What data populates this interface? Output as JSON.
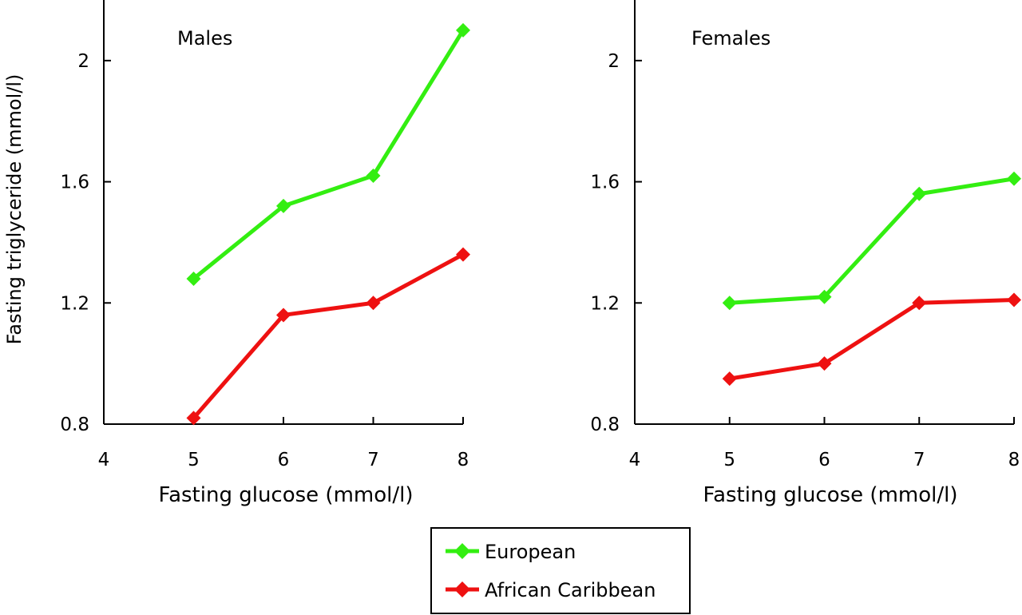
{
  "chart_data": [
    {
      "type": "line",
      "title": "Males",
      "xlabel": "Fasting glucose (mmol/l)",
      "ylabel": "Fasting triglyceride (mmol/l)",
      "xlim": [
        4,
        8
      ],
      "ylim": [
        0.8,
        2.2
      ],
      "xticks": [
        4,
        5,
        6,
        7,
        8
      ],
      "yticks": [
        0.8,
        1.2,
        1.6,
        2
      ],
      "x": [
        5,
        6,
        7,
        8
      ],
      "series": [
        {
          "name": "European",
          "color": "#33ee11",
          "values": [
            1.28,
            1.52,
            1.62,
            2.1
          ]
        },
        {
          "name": "African Caribbean",
          "color": "#ee1111",
          "values": [
            0.82,
            1.16,
            1.2,
            1.36
          ]
        }
      ]
    },
    {
      "type": "line",
      "title": "Females",
      "xlabel": "Fasting glucose (mmol/l)",
      "ylabel": "",
      "xlim": [
        4,
        8
      ],
      "ylim": [
        0.8,
        2.2
      ],
      "xticks": [
        4,
        5,
        6,
        7,
        8
      ],
      "yticks": [
        0.8,
        1.2,
        1.6,
        2
      ],
      "x": [
        5,
        6,
        7,
        8
      ],
      "series": [
        {
          "name": "European",
          "color": "#33ee11",
          "values": [
            1.2,
            1.22,
            1.56,
            1.61
          ]
        },
        {
          "name": "African Caribbean",
          "color": "#ee1111",
          "values": [
            0.95,
            1.0,
            1.2,
            1.21
          ]
        }
      ]
    }
  ],
  "legend": {
    "placement": "bottom-center",
    "items": [
      {
        "label": "European",
        "color": "#33ee11"
      },
      {
        "label": "African Caribbean",
        "color": "#ee1111"
      }
    ]
  }
}
